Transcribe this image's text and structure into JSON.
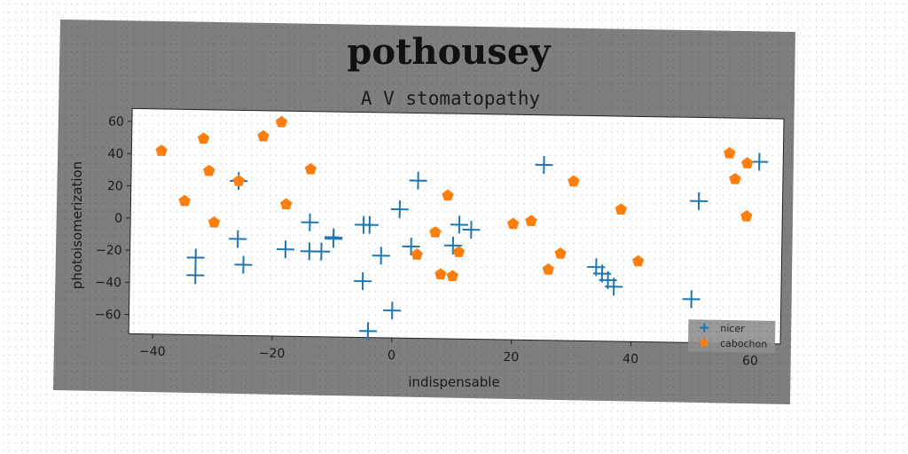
{
  "chart_data": {
    "type": "scatter",
    "title": "pothousey",
    "subtitle": "A V stomatopathy",
    "xlabel": "indispensable",
    "ylabel": "photoisomerization",
    "xlim": [
      -44,
      65
    ],
    "ylim": [
      -72,
      68
    ],
    "xticks": [
      -40,
      -20,
      0,
      20,
      40,
      60
    ],
    "yticks": [
      -60,
      -40,
      -20,
      0,
      20,
      40,
      60
    ],
    "xtick_labels": [
      "−40",
      "−20",
      "0",
      "20",
      "40",
      "60"
    ],
    "ytick_labels": [
      "−60",
      "−40",
      "−20",
      "0",
      "20",
      "40",
      "60"
    ],
    "grid": false,
    "legend_position": "bottom-right",
    "series": [
      {
        "name": "nicer",
        "marker": "plus",
        "color": "#1f77b4",
        "points": [
          [
            -33,
            -24
          ],
          [
            -33,
            -35
          ],
          [
            -26,
            24
          ],
          [
            -26,
            -12
          ],
          [
            -25,
            -28
          ],
          [
            -18,
            -18
          ],
          [
            -14,
            -1
          ],
          [
            -14,
            -19
          ],
          [
            -12,
            -19
          ],
          [
            -10,
            -11
          ],
          [
            -10,
            -10
          ],
          [
            -5,
            -2
          ],
          [
            -5,
            -37
          ],
          [
            -4,
            -2
          ],
          [
            -4,
            -68
          ],
          [
            -2,
            -21
          ],
          [
            0,
            -55
          ],
          [
            1,
            8
          ],
          [
            3,
            -15
          ],
          [
            4,
            26
          ],
          [
            10,
            -14
          ],
          [
            11,
            -1
          ],
          [
            13,
            -4
          ],
          [
            25,
            37
          ],
          [
            34,
            -26
          ],
          [
            35,
            -30
          ],
          [
            36,
            -34
          ],
          [
            37,
            -38
          ],
          [
            50,
            -45
          ],
          [
            51,
            16
          ],
          [
            61,
            41
          ]
        ]
      },
      {
        "name": "cabochon",
        "marker": "pentagon",
        "color": "#ff7f0e",
        "points": [
          [
            -39,
            42
          ],
          [
            -35,
            11
          ],
          [
            -32,
            50
          ],
          [
            -31,
            30
          ],
          [
            -30,
            -2
          ],
          [
            -26,
            24
          ],
          [
            -22,
            52
          ],
          [
            -19,
            61
          ],
          [
            -18,
            10
          ],
          [
            -14,
            32
          ],
          [
            4,
            -20
          ],
          [
            7,
            -6
          ],
          [
            8,
            -32
          ],
          [
            9,
            17
          ],
          [
            10,
            -33
          ],
          [
            11,
            -18
          ],
          [
            20,
            0
          ],
          [
            23,
            2
          ],
          [
            26,
            -28
          ],
          [
            28,
            -18
          ],
          [
            30,
            27
          ],
          [
            38,
            10
          ],
          [
            41,
            -22
          ],
          [
            56,
            46
          ],
          [
            57,
            30
          ],
          [
            59,
            40
          ],
          [
            59,
            7
          ]
        ]
      }
    ]
  }
}
